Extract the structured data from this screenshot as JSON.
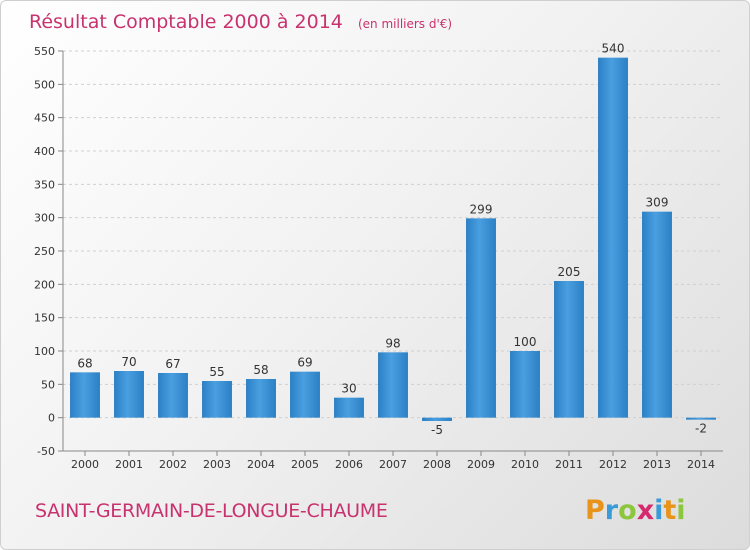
{
  "header": {
    "title": "Résultat Comptable 2000 à 2014",
    "unit": "(en milliers d'€)"
  },
  "footer": {
    "commune": "SAINT-GERMAIN-DE-LONGUE-CHAUME",
    "logo_letters": [
      "P",
      "r",
      "o",
      "x",
      "i",
      "t",
      "i"
    ],
    "logo_colors": [
      "#e8931a",
      "#3a9bd8",
      "#8cc63f",
      "#d62a6f",
      "#3a9bd8",
      "#e8931a",
      "#8cc63f"
    ]
  },
  "colors": {
    "bar": "#4a9fe0",
    "bar_dark": "#2b7fc4",
    "title": "#c8326e"
  },
  "chart_data": {
    "type": "bar",
    "categories": [
      "2000",
      "2001",
      "2002",
      "2003",
      "2004",
      "2005",
      "2006",
      "2007",
      "2008",
      "2009",
      "2010",
      "2011",
      "2012",
      "2013",
      "2014"
    ],
    "values": [
      68,
      70,
      67,
      55,
      58,
      69,
      30,
      98,
      -5,
      299,
      100,
      205,
      540,
      309,
      -2
    ],
    "ylim": [
      -50,
      550
    ],
    "yticks": [
      -50,
      0,
      50,
      100,
      150,
      200,
      250,
      300,
      350,
      400,
      450,
      500,
      550
    ],
    "grid": true
  }
}
